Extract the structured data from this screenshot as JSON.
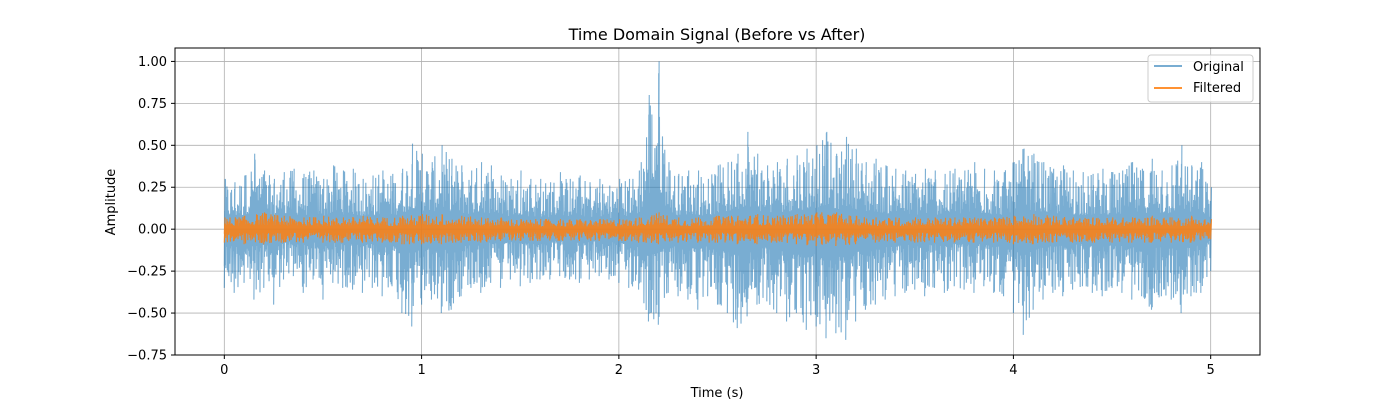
{
  "chart_data": {
    "type": "line",
    "title": "Time Domain Signal (Before vs After)",
    "xlabel": "Time (s)",
    "ylabel": "Amplitude",
    "xlim": [
      -0.25,
      5.25
    ],
    "ylim": [
      -0.75,
      1.08
    ],
    "xticks": [
      0,
      1,
      2,
      3,
      4,
      5
    ],
    "xtick_labels": [
      "0",
      "1",
      "2",
      "3",
      "4",
      "5"
    ],
    "yticks": [
      -0.75,
      -0.5,
      -0.25,
      0.0,
      0.25,
      0.5,
      0.75,
      1.0
    ],
    "ytick_labels": [
      "−0.75",
      "−0.50",
      "−0.25",
      "0.00",
      "0.25",
      "0.50",
      "0.75",
      "1.00"
    ],
    "grid": true,
    "legend": "top-right",
    "series": [
      {
        "name": "Original",
        "color": "#1f77b4",
        "opacity": 0.6,
        "x": [
          0.0,
          0.05,
          0.1,
          0.15,
          0.2,
          0.25,
          0.3,
          0.35,
          0.4,
          0.45,
          0.5,
          0.55,
          0.6,
          0.65,
          0.7,
          0.75,
          0.8,
          0.85,
          0.9,
          0.95,
          1.0,
          1.05,
          1.1,
          1.15,
          1.2,
          1.25,
          1.3,
          1.35,
          1.4,
          1.45,
          1.5,
          1.55,
          1.6,
          1.65,
          1.7,
          1.75,
          1.8,
          1.85,
          1.9,
          1.95,
          2.0,
          2.05,
          2.1,
          2.15,
          2.2,
          2.25,
          2.3,
          2.35,
          2.4,
          2.45,
          2.5,
          2.55,
          2.6,
          2.65,
          2.7,
          2.75,
          2.8,
          2.85,
          2.9,
          2.95,
          3.0,
          3.05,
          3.1,
          3.15,
          3.2,
          3.25,
          3.3,
          3.35,
          3.4,
          3.45,
          3.5,
          3.55,
          3.6,
          3.65,
          3.7,
          3.75,
          3.8,
          3.85,
          3.9,
          3.95,
          4.0,
          4.05,
          4.1,
          4.15,
          4.2,
          4.25,
          4.3,
          4.35,
          4.4,
          4.45,
          4.5,
          4.55,
          4.6,
          4.65,
          4.7,
          4.75,
          4.8,
          4.85,
          4.9,
          4.95,
          5.0
        ],
        "upper": [
          0.3,
          0.28,
          0.32,
          0.45,
          0.35,
          0.3,
          0.34,
          0.36,
          0.33,
          0.35,
          0.3,
          0.38,
          0.35,
          0.36,
          0.3,
          0.32,
          0.35,
          0.33,
          0.36,
          0.51,
          0.45,
          0.4,
          0.5,
          0.42,
          0.38,
          0.35,
          0.4,
          0.38,
          0.32,
          0.3,
          0.35,
          0.3,
          0.3,
          0.28,
          0.34,
          0.3,
          0.32,
          0.28,
          0.3,
          0.26,
          0.3,
          0.3,
          0.35,
          0.8,
          1.0,
          0.4,
          0.33,
          0.35,
          0.35,
          0.3,
          0.38,
          0.4,
          0.45,
          0.58,
          0.45,
          0.38,
          0.4,
          0.42,
          0.44,
          0.48,
          0.5,
          0.58,
          0.45,
          0.55,
          0.48,
          0.4,
          0.42,
          0.38,
          0.36,
          0.35,
          0.33,
          0.36,
          0.35,
          0.33,
          0.36,
          0.35,
          0.4,
          0.36,
          0.35,
          0.34,
          0.4,
          0.48,
          0.45,
          0.4,
          0.36,
          0.38,
          0.35,
          0.34,
          0.33,
          0.36,
          0.34,
          0.35,
          0.4,
          0.36,
          0.42,
          0.35,
          0.38,
          0.5,
          0.38,
          0.4,
          0.25
        ],
        "lower": [
          -0.35,
          -0.38,
          -0.32,
          -0.42,
          -0.35,
          -0.45,
          -0.3,
          -0.28,
          -0.38,
          -0.3,
          -0.42,
          -0.32,
          -0.35,
          -0.36,
          -0.38,
          -0.35,
          -0.4,
          -0.34,
          -0.5,
          -0.58,
          -0.45,
          -0.42,
          -0.5,
          -0.48,
          -0.4,
          -0.35,
          -0.38,
          -0.32,
          -0.35,
          -0.3,
          -0.34,
          -0.32,
          -0.3,
          -0.3,
          -0.28,
          -0.3,
          -0.32,
          -0.3,
          -0.28,
          -0.3,
          -0.32,
          -0.35,
          -0.36,
          -0.55,
          -0.57,
          -0.38,
          -0.4,
          -0.42,
          -0.48,
          -0.4,
          -0.45,
          -0.5,
          -0.59,
          -0.52,
          -0.45,
          -0.43,
          -0.5,
          -0.55,
          -0.5,
          -0.6,
          -0.58,
          -0.65,
          -0.62,
          -0.66,
          -0.55,
          -0.48,
          -0.45,
          -0.42,
          -0.4,
          -0.38,
          -0.36,
          -0.4,
          -0.35,
          -0.38,
          -0.34,
          -0.36,
          -0.38,
          -0.34,
          -0.38,
          -0.4,
          -0.5,
          -0.63,
          -0.48,
          -0.42,
          -0.38,
          -0.4,
          -0.36,
          -0.34,
          -0.38,
          -0.4,
          -0.35,
          -0.38,
          -0.42,
          -0.4,
          -0.48,
          -0.4,
          -0.42,
          -0.5,
          -0.4,
          -0.38,
          -0.25
        ]
      },
      {
        "name": "Filtered",
        "color": "#ff7f0e",
        "opacity": 0.85,
        "x": [
          0.0,
          0.1,
          0.2,
          0.3,
          0.4,
          0.5,
          0.6,
          0.7,
          0.8,
          0.9,
          1.0,
          1.1,
          1.2,
          1.3,
          1.4,
          1.5,
          1.6,
          1.7,
          1.8,
          1.9,
          2.0,
          2.1,
          2.2,
          2.3,
          2.4,
          2.5,
          2.6,
          2.7,
          2.8,
          2.9,
          3.0,
          3.1,
          3.2,
          3.3,
          3.4,
          3.5,
          3.6,
          3.7,
          3.8,
          3.9,
          4.0,
          4.1,
          4.2,
          4.3,
          4.4,
          4.5,
          4.6,
          4.7,
          4.8,
          4.9,
          5.0
        ],
        "upper": [
          0.07,
          0.08,
          0.1,
          0.08,
          0.07,
          0.08,
          0.07,
          0.08,
          0.07,
          0.08,
          0.09,
          0.09,
          0.08,
          0.07,
          0.07,
          0.06,
          0.06,
          0.06,
          0.06,
          0.06,
          0.06,
          0.07,
          0.1,
          0.07,
          0.07,
          0.08,
          0.08,
          0.09,
          0.08,
          0.09,
          0.1,
          0.1,
          0.08,
          0.07,
          0.07,
          0.07,
          0.07,
          0.07,
          0.07,
          0.07,
          0.08,
          0.09,
          0.08,
          0.07,
          0.07,
          0.07,
          0.07,
          0.08,
          0.07,
          0.08,
          0.06
        ],
        "lower": [
          -0.08,
          -0.09,
          -0.09,
          -0.08,
          -0.08,
          -0.08,
          -0.08,
          -0.08,
          -0.08,
          -0.09,
          -0.09,
          -0.09,
          -0.08,
          -0.08,
          -0.07,
          -0.07,
          -0.07,
          -0.07,
          -0.07,
          -0.07,
          -0.07,
          -0.08,
          -0.09,
          -0.08,
          -0.08,
          -0.08,
          -0.09,
          -0.09,
          -0.08,
          -0.09,
          -0.1,
          -0.1,
          -0.09,
          -0.08,
          -0.08,
          -0.08,
          -0.08,
          -0.08,
          -0.08,
          -0.08,
          -0.09,
          -0.09,
          -0.08,
          -0.08,
          -0.08,
          -0.08,
          -0.08,
          -0.08,
          -0.08,
          -0.08,
          -0.06
        ]
      }
    ]
  }
}
